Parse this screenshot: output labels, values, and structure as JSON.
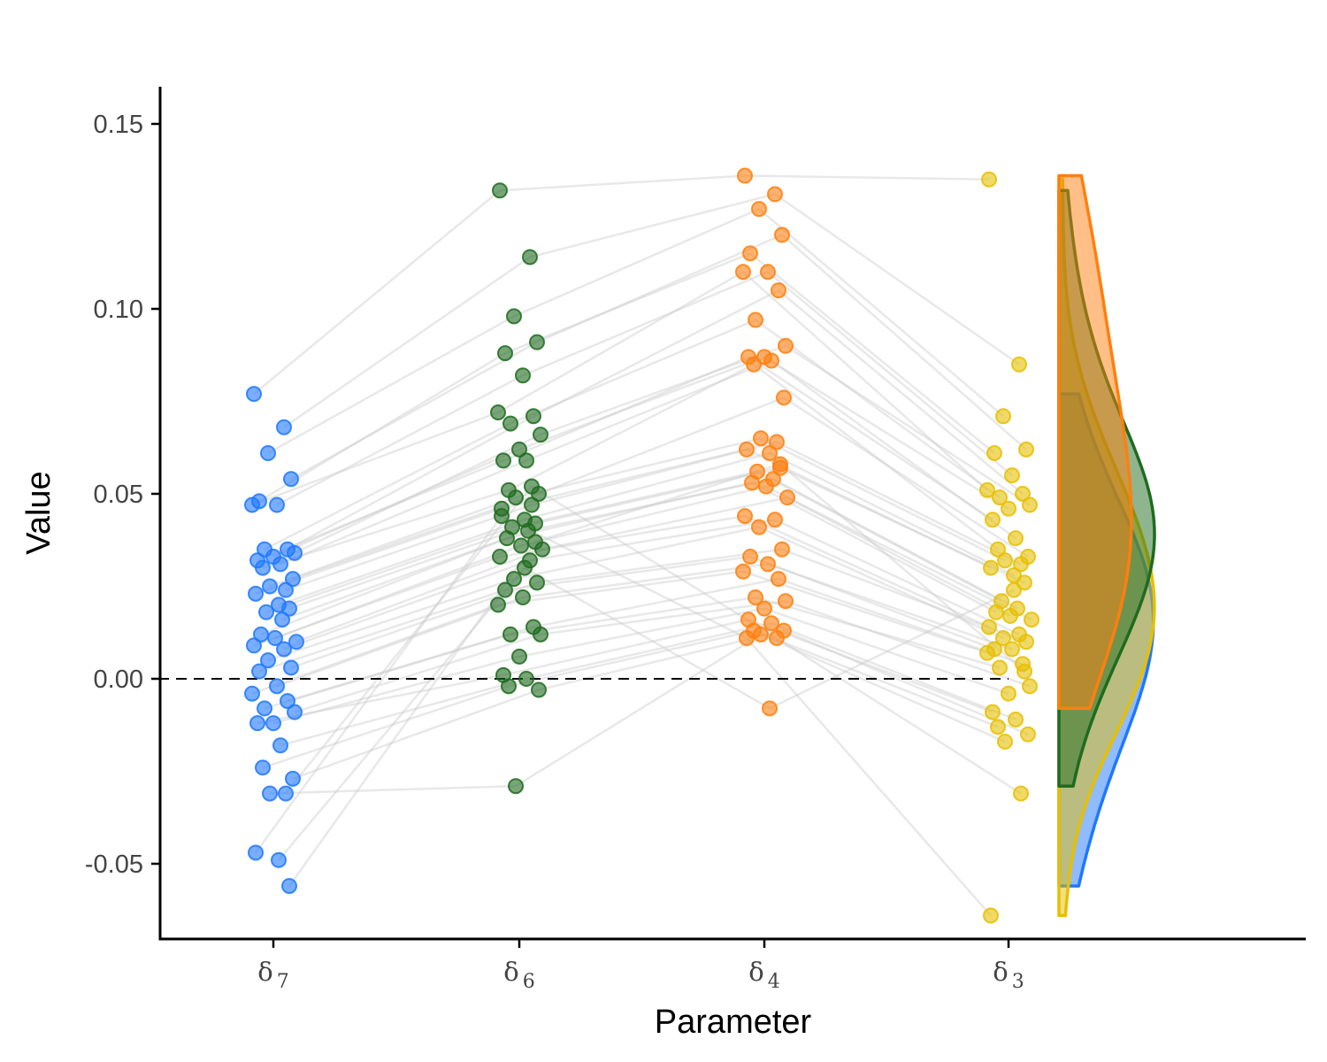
{
  "chart_data": {
    "type": "scatter",
    "subtype": "raincloud-paired",
    "xlabel": "Parameter",
    "ylabel": "Value",
    "ylim": [
      -0.065,
      0.16
    ],
    "yticks": [
      -0.05,
      0.0,
      0.05,
      0.1,
      0.15
    ],
    "ytick_labels": [
      "-0.05",
      "0.00",
      "0.05",
      "0.10",
      "0.15"
    ],
    "reference_line": 0.0,
    "grid": false,
    "categories": [
      {
        "symbol": "δ",
        "subscript": "7"
      },
      {
        "symbol": "δ",
        "subscript": "6"
      },
      {
        "symbol": "δ",
        "subscript": "4"
      },
      {
        "symbol": "δ",
        "subscript": "3"
      }
    ],
    "colors": [
      "#1f78ff",
      "#1f6b1f",
      "#ff7f0e",
      "#e6c000"
    ],
    "connector_color": "#cccccc",
    "series": [
      {
        "values": [
          0.077,
          0.068,
          0.061,
          0.054,
          0.048,
          0.047,
          0.047,
          0.035,
          0.035,
          0.034,
          0.033,
          0.032,
          0.031,
          0.03,
          0.027,
          0.025,
          0.024,
          0.023,
          0.02,
          0.019,
          0.018,
          0.016,
          0.012,
          0.011,
          0.01,
          0.009,
          0.008,
          0.005,
          0.003,
          0.002,
          -0.002,
          -0.004,
          -0.006,
          -0.008,
          -0.009,
          -0.012,
          -0.012,
          -0.018,
          -0.024,
          -0.027,
          -0.031,
          -0.031,
          -0.047,
          -0.049,
          -0.056
        ]
      },
      {
        "values": [
          0.132,
          0.114,
          0.098,
          0.091,
          0.088,
          0.082,
          0.072,
          0.071,
          0.069,
          0.066,
          0.062,
          0.059,
          0.059,
          0.051,
          0.05,
          0.049,
          0.047,
          0.046,
          0.043,
          0.042,
          0.041,
          0.04,
          0.038,
          0.036,
          0.035,
          0.033,
          0.032,
          0.027,
          0.026,
          0.024,
          0.022,
          0.02,
          0.014,
          0.012,
          0.012,
          0.006,
          0.001,
          0.0,
          -0.002,
          -0.003,
          -0.029,
          0.052,
          0.044,
          0.03,
          0.037
        ]
      },
      {
        "values": [
          0.136,
          0.131,
          0.127,
          0.12,
          0.115,
          0.11,
          0.11,
          0.105,
          0.097,
          0.09,
          0.087,
          0.087,
          0.086,
          0.085,
          0.076,
          0.065,
          0.064,
          0.062,
          0.061,
          0.057,
          0.056,
          0.054,
          0.053,
          0.052,
          0.049,
          0.044,
          0.043,
          0.041,
          0.035,
          0.033,
          0.031,
          0.029,
          0.027,
          0.022,
          0.021,
          0.019,
          0.016,
          0.015,
          0.013,
          0.013,
          0.012,
          0.011,
          0.011,
          -0.008,
          0.058
        ]
      },
      {
        "values": [
          0.135,
          0.085,
          0.071,
          0.062,
          0.061,
          0.055,
          0.051,
          0.05,
          0.049,
          0.047,
          0.046,
          0.043,
          0.038,
          0.035,
          0.033,
          0.032,
          0.031,
          0.03,
          0.028,
          0.026,
          0.021,
          0.019,
          0.018,
          0.017,
          0.016,
          0.014,
          0.012,
          0.011,
          0.01,
          0.008,
          0.008,
          0.007,
          0.004,
          0.003,
          -0.002,
          -0.004,
          -0.009,
          -0.011,
          -0.013,
          -0.015,
          -0.017,
          -0.031,
          -0.064,
          0.024,
          0.002
        ]
      }
    ]
  }
}
